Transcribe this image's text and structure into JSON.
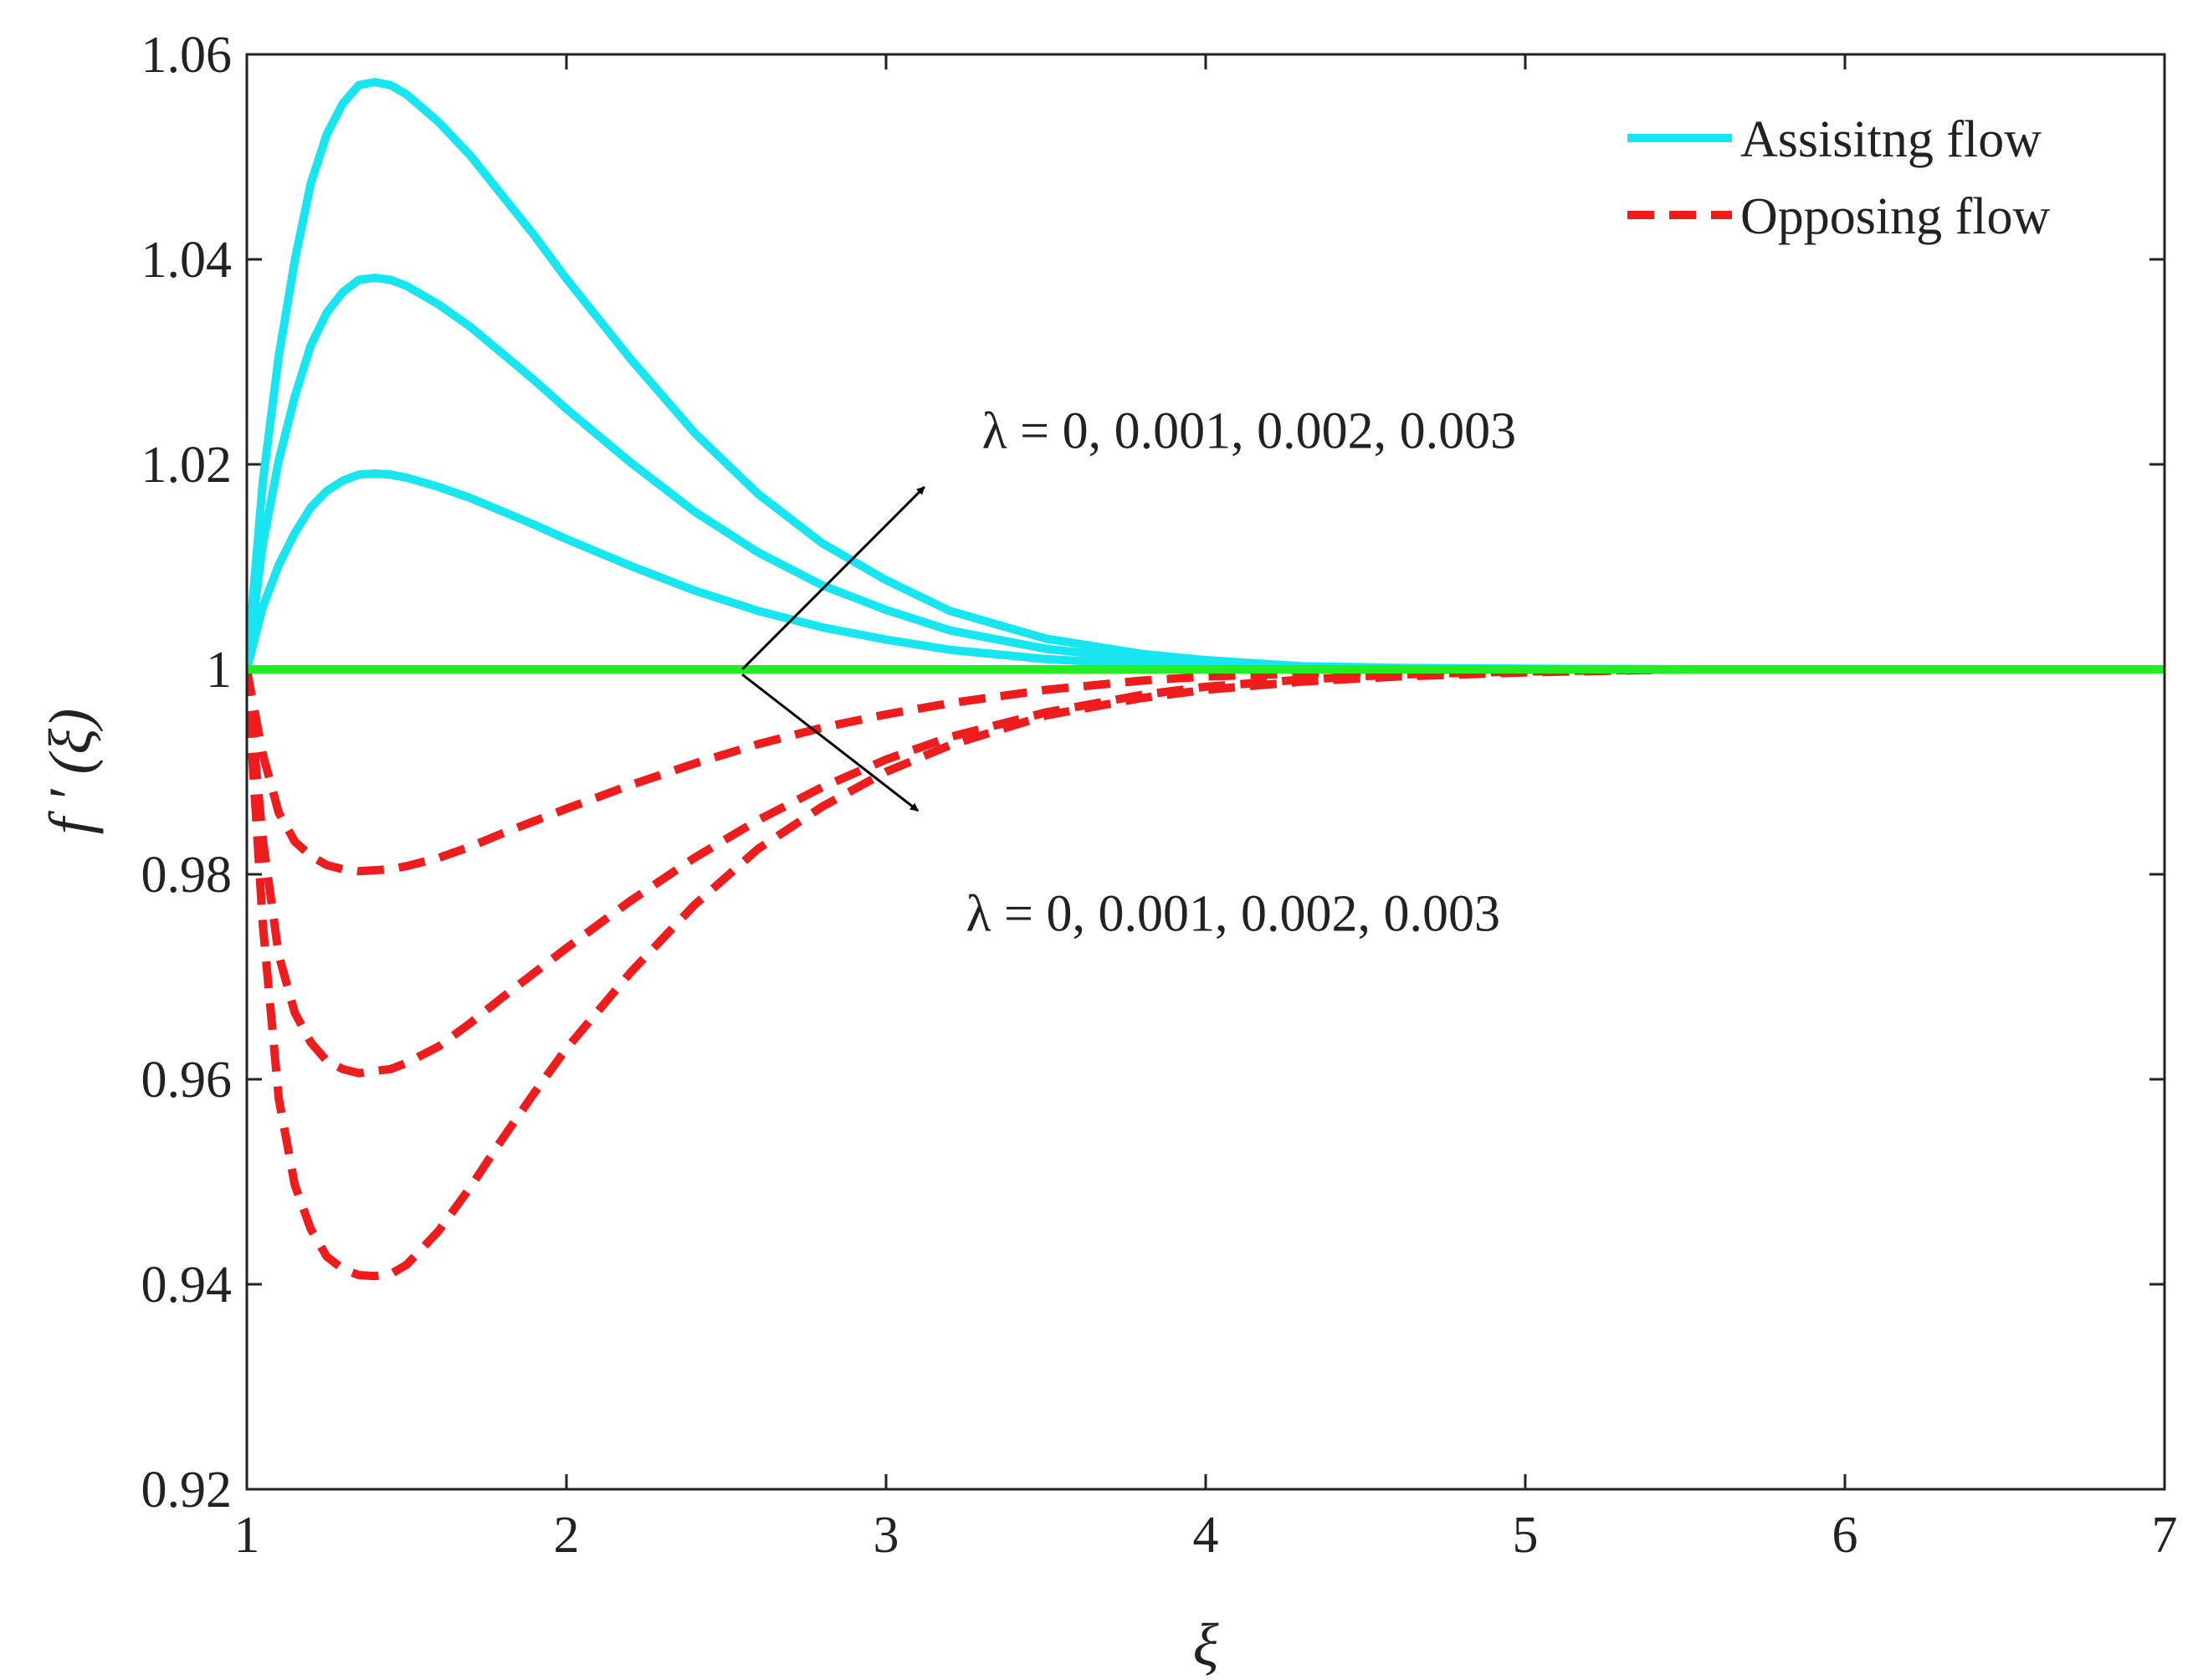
{
  "chart_data": {
    "type": "line",
    "title": "",
    "xlabel": "ξ",
    "ylabel": "f ′ (ξ)",
    "xlim": [
      1,
      7
    ],
    "ylim": [
      0.92,
      1.06
    ],
    "x_ticks": [
      1,
      2,
      3,
      4,
      5,
      6,
      7
    ],
    "x_tick_labels": [
      "1",
      "2",
      "3",
      "4",
      "5",
      "6",
      "7"
    ],
    "y_ticks": [
      0.92,
      0.94,
      0.96,
      0.98,
      1,
      1.02,
      1.04,
      1.06
    ],
    "y_tick_labels": [
      "0.92",
      "0.94",
      "0.96",
      "0.98",
      "1",
      "1.02",
      "1.04",
      "1.06"
    ],
    "grid": false,
    "legend": {
      "position": "top-right",
      "entries": [
        {
          "label": "Assisitng flow",
          "color": "#17e6f0",
          "style": "solid"
        },
        {
          "label": "Opposing flow",
          "color": "#ee1c1c",
          "style": "dashed"
        }
      ]
    },
    "x": [
      1,
      1.05,
      1.1,
      1.15,
      1.2,
      1.25,
      1.3,
      1.35,
      1.4,
      1.45,
      1.5,
      1.6,
      1.7,
      1.8,
      1.9,
      2,
      2.2,
      2.4,
      2.6,
      2.8,
      3,
      3.2,
      3.5,
      3.8,
      4,
      4.3,
      4.6,
      5,
      5.5,
      6,
      6.5,
      7
    ],
    "series": [
      {
        "name": "Assisitng flow, λ = 0.001",
        "color": "#17e6f0",
        "style": "solid",
        "values": [
          1,
          1.0061,
          1.0102,
          1.0133,
          1.0158,
          1.0174,
          1.0184,
          1.019,
          1.0191,
          1.019,
          1.0187,
          1.0178,
          1.0167,
          1.0154,
          1.0141,
          1.0127,
          1.0101,
          1.0077,
          1.0057,
          1.0041,
          1.0029,
          1.0019,
          1.001,
          1.0005,
          1.0003,
          1.0001,
          1.00005,
          1.00002,
          1,
          1,
          1,
          1
        ]
      },
      {
        "name": "Assisitng flow, λ = 0.002",
        "color": "#17e6f0",
        "style": "solid",
        "values": [
          1,
          1.0122,
          1.0204,
          1.0266,
          1.0316,
          1.0348,
          1.0368,
          1.038,
          1.0382,
          1.038,
          1.0374,
          1.0356,
          1.0334,
          1.0308,
          1.0282,
          1.0254,
          1.0202,
          1.0154,
          1.0114,
          1.0082,
          1.0058,
          1.0038,
          1.002,
          1.001,
          1.0006,
          1.0002,
          1.0001,
          1.00004,
          1,
          1,
          1,
          1
        ]
      },
      {
        "name": "Assisitng flow, λ = 0.003",
        "color": "#17e6f0",
        "style": "solid",
        "values": [
          1,
          1.0183,
          1.0306,
          1.0399,
          1.0474,
          1.0522,
          1.0552,
          1.057,
          1.0573,
          1.057,
          1.0561,
          1.0534,
          1.0501,
          1.0462,
          1.0423,
          1.0381,
          1.0303,
          1.0231,
          1.0171,
          1.0123,
          1.0087,
          1.0057,
          1.003,
          1.0015,
          1.0009,
          1.0003,
          1.00015,
          1.00006,
          1,
          1,
          1,
          1
        ]
      },
      {
        "name": "λ = 0",
        "color": "#22ee22",
        "style": "solid",
        "values": [
          1,
          1,
          1,
          1,
          1,
          1,
          1,
          1,
          1,
          1,
          1,
          1,
          1,
          1,
          1,
          1,
          1,
          1,
          1,
          1,
          1,
          1,
          1,
          1,
          1,
          1,
          1,
          1,
          1,
          1,
          1,
          1
        ]
      },
      {
        "name": "Opposing flow, λ = 0.001",
        "color": "#ee1c1c",
        "style": "dashed",
        "values": [
          1,
          0.9917,
          0.986,
          0.9832,
          0.9818,
          0.9809,
          0.9805,
          0.9803,
          0.9804,
          0.9805,
          0.9808,
          0.9816,
          0.9827,
          0.984,
          0.9852,
          0.9864,
          0.9887,
          0.9908,
          0.9927,
          0.9943,
          0.9956,
          0.9967,
          0.998,
          0.9989,
          0.9993,
          0.9996,
          0.9998,
          0.99995,
          1,
          1,
          1,
          1
        ]
      },
      {
        "name": "Opposing flow, λ = 0.002",
        "color": "#ee1c1c",
        "style": "dashed",
        "values": [
          1,
          0.9834,
          0.9721,
          0.9665,
          0.9636,
          0.9618,
          0.961,
          0.9606,
          0.9608,
          0.961,
          0.9616,
          0.9632,
          0.9655,
          0.968,
          0.9704,
          0.9728,
          0.9774,
          0.9816,
          0.9853,
          0.9885,
          0.9912,
          0.9934,
          0.9958,
          0.9975,
          0.9983,
          0.999,
          0.9995,
          0.9998,
          1,
          1,
          1,
          1
        ]
      },
      {
        "name": "Opposing flow, λ = 0.003",
        "color": "#ee1c1c",
        "style": "dashed",
        "values": [
          1,
          0.9751,
          0.9581,
          0.9497,
          0.9454,
          0.9427,
          0.9415,
          0.9409,
          0.9408,
          0.941,
          0.9419,
          0.9452,
          0.9495,
          0.9542,
          0.9587,
          0.963,
          0.9704,
          0.977,
          0.9825,
          0.9866,
          0.99,
          0.9926,
          0.9955,
          0.9972,
          0.998,
          0.9988,
          0.9993,
          0.9997,
          1,
          1,
          1,
          1
        ]
      }
    ],
    "annotations": [
      {
        "text": "λ = 0, 0.001, 0.002, 0.003",
        "x": 3.3,
        "y": 1.0216,
        "arrow_from": [
          2.55,
          1
        ],
        "arrow_to": [
          3.12,
          1.0178
        ]
      },
      {
        "text": "λ = 0, 0.001, 0.002, 0.003",
        "x": 3.25,
        "y": 0.9745,
        "arrow_from": [
          2.55,
          0.9995
        ],
        "arrow_to": [
          3.1,
          0.9862
        ]
      }
    ]
  }
}
